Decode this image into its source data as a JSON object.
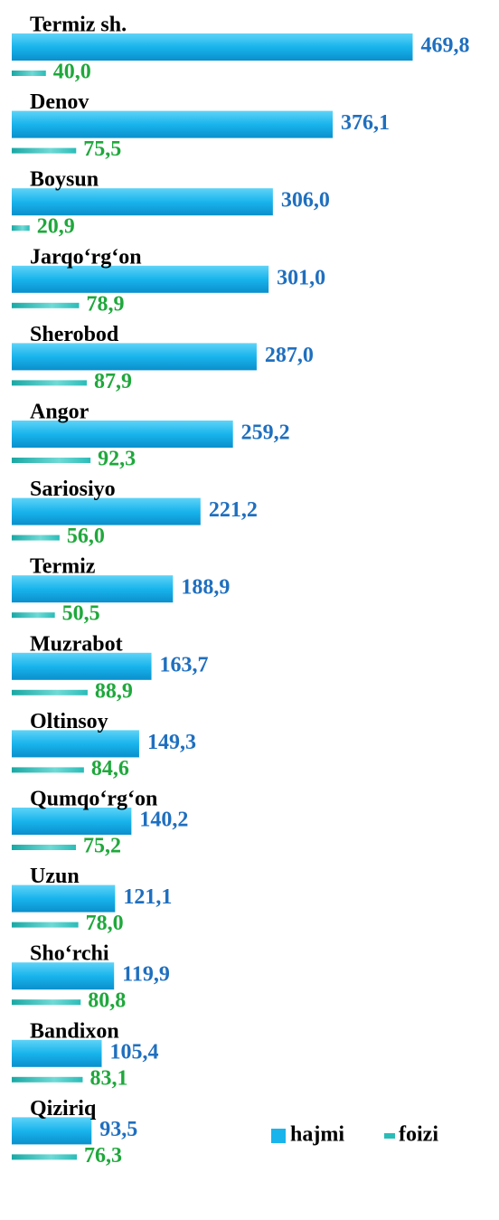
{
  "chart_data": {
    "type": "bar",
    "orientation": "horizontal",
    "categories": [
      "Termiz sh.",
      "Denov",
      "Boysun",
      "Jarqo‘rg‘on",
      "Sherobod",
      "Angor",
      "Sariosiyo",
      "Termiz",
      "Muzrabot",
      "Oltinsoy",
      "Qumqo‘rg‘on",
      "Uzun",
      "Sho‘rchi",
      "Bandixon",
      "Qiziriq"
    ],
    "series": [
      {
        "name": "hajmi",
        "color": "#19b4ec",
        "label_color": "#1f6fbf",
        "values": [
          469.8,
          376.1,
          306.0,
          301.0,
          287.0,
          259.2,
          221.2,
          188.9,
          163.7,
          149.3,
          140.2,
          121.1,
          119.9,
          105.4,
          93.5
        ],
        "value_labels": [
          "469,8",
          "376,1",
          "306,0",
          "301,0",
          "287,0",
          "259,2",
          "221,2",
          "188,9",
          "163,7",
          "149,3",
          "140,2",
          "121,1",
          "119,9",
          "105,4",
          "93,5"
        ]
      },
      {
        "name": "foizi",
        "color": "#2bbcb8",
        "label_color": "#1fa83c",
        "values": [
          40.0,
          75.5,
          20.9,
          78.9,
          87.9,
          92.3,
          56.0,
          50.5,
          88.9,
          84.6,
          75.2,
          78.0,
          80.8,
          83.1,
          76.3
        ],
        "value_labels": [
          "40,0",
          "75,5",
          "20,9",
          "78,9",
          "87,9",
          "92,3",
          "56,0",
          "50,5",
          "88,9",
          "84,6",
          "75,2",
          "78,0",
          "80,8",
          "83,1",
          "76,3"
        ]
      }
    ],
    "xlim": [
      0,
      500
    ],
    "legend": "bottom-right"
  }
}
